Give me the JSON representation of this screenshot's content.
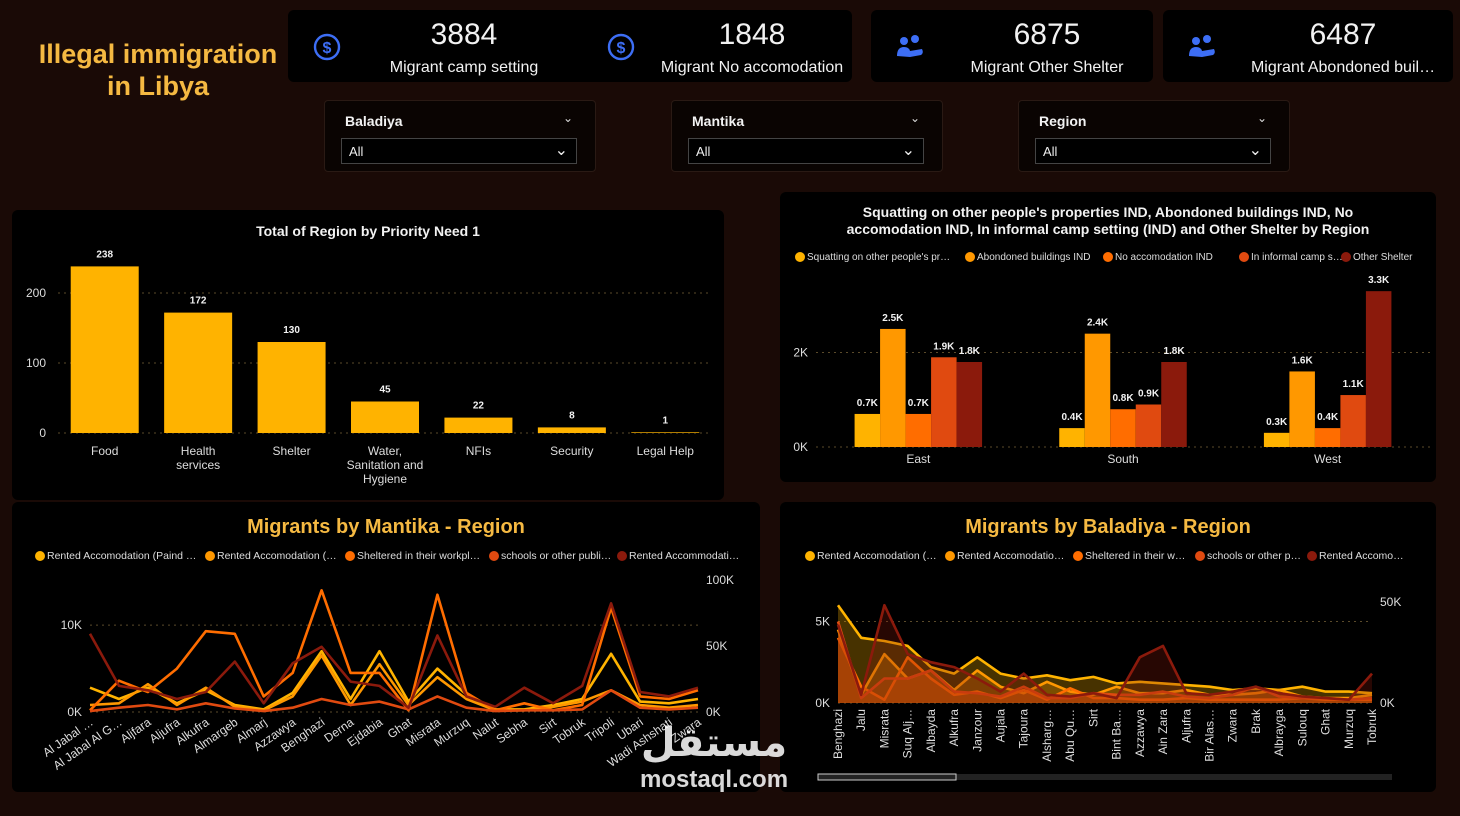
{
  "page": {
    "title_line1": "Illegal immigration",
    "title_line2": "in Libya"
  },
  "kpis": [
    {
      "value": "3884",
      "label": "Migrant camp setting",
      "icon": "dollar-icon"
    },
    {
      "value": "1848",
      "label": "Migrant No accomodation",
      "icon": "dollar-icon"
    },
    {
      "value": "6875",
      "label": "Migrant Other Shelter",
      "icon": "people-icon"
    },
    {
      "value": "6487",
      "label": "Migrant Abondoned buil…",
      "icon": "people-icon"
    }
  ],
  "slicers": [
    {
      "title": "Baladiya",
      "value": "All"
    },
    {
      "title": "Mantika",
      "value": "All"
    },
    {
      "title": "Region",
      "value": "All"
    }
  ],
  "colors": {
    "gold": "#ffb300",
    "light_orange": "#ff9800",
    "orange": "#ff6d00",
    "red_orange": "#e04a10",
    "dark_red": "#8b1a0c",
    "title_gold": "#f5b942"
  },
  "watermark": {
    "arabic": "مستقل",
    "latin": "mostaql.com"
  },
  "chart_data": [
    {
      "type": "bar",
      "title": "Total of Region by Priority Need 1",
      "categories": [
        "Food",
        "Health services",
        "Shelter",
        "Water, Sanitation and Hygiene",
        "NFIs",
        "Security",
        "Legal Help"
      ],
      "category_lines": [
        [
          "Food"
        ],
        [
          "Health",
          "services"
        ],
        [
          "Shelter"
        ],
        [
          "Water,",
          "Sanitation and",
          "Hygiene"
        ],
        [
          "NFIs"
        ],
        [
          "Security"
        ],
        [
          "Legal Help"
        ]
      ],
      "values": [
        238,
        172,
        130,
        45,
        22,
        8,
        1
      ],
      "value_labels": [
        "238",
        "172",
        "130",
        "45",
        "22",
        "8",
        "1"
      ],
      "yticks": [
        0,
        100,
        200
      ],
      "ytick_labels": [
        "0",
        "100",
        "200"
      ],
      "ylim": [
        0,
        250
      ],
      "grid": true
    },
    {
      "type": "bar",
      "title_line1": "Squatting on other people's properties IND, Abondoned buildings IND, No",
      "title_line2": "accomodation IND, In informal camp setting (IND) and Other Shelter by Region",
      "categories": [
        "East",
        "South",
        "West"
      ],
      "series": [
        {
          "name": "Squatting on other people's pr…",
          "values": [
            0.7,
            0.4,
            0.3
          ],
          "labels": [
            "0.7K",
            "0.4K",
            "0.3K"
          ]
        },
        {
          "name": "Abondoned buildings IND",
          "values": [
            2.5,
            2.4,
            1.6
          ],
          "labels": [
            "2.5K",
            "2.4K",
            "1.6K"
          ]
        },
        {
          "name": "No accomodation IND",
          "values": [
            0.7,
            0.8,
            0.4
          ],
          "labels": [
            "0.7K",
            "0.8K",
            "0.4K"
          ]
        },
        {
          "name": "In informal camp s…",
          "values": [
            1.9,
            0.9,
            1.1
          ],
          "labels": [
            "1.9K",
            "0.9K",
            "1.1K"
          ]
        },
        {
          "name": "Other Shelter",
          "values": [
            1.8,
            1.8,
            3.3
          ],
          "labels": [
            "1.8K",
            "1.8K",
            "3.3K"
          ]
        }
      ],
      "yticks": [
        0,
        2
      ],
      "ytick_labels": [
        "0K",
        "2K"
      ],
      "ylim": [
        0,
        3.6
      ],
      "legend": "top",
      "grid": true
    },
    {
      "type": "line",
      "title": "Migrants by Mantika - Region",
      "x": [
        "Al Jabal …",
        "Al Jabal Al G…",
        "Aljfara",
        "Aljufra",
        "Alkufra",
        "Almargeb",
        "Almarj",
        "Azzawya",
        "Benghazi",
        "Derna",
        "Ejdabia",
        "Ghat",
        "Misrata",
        "Murzuq",
        "Nalut",
        "Sebha",
        "Sirt",
        "Tobruk",
        "Tripoli",
        "Ubari",
        "Wadi Ashshati",
        "Zwara"
      ],
      "x_tick_labels": [
        "Al Jabal …",
        "Al Jabal Al G…",
        "Aljfara",
        "Aljufra",
        "Alkufra",
        "Almargeb",
        "Almarj",
        "Azzawya",
        "Benghazi",
        "Derna",
        "Ejdabia",
        "Ghat",
        "Misrata",
        "Murzuq",
        "Nalut",
        "Sebha",
        "Sirt",
        "Tobruk",
        "Tripoli",
        "Ubari",
        "Wadi Ashshati",
        "Zwara"
      ],
      "series": [
        {
          "name": "Rented Accomodation (Paind …",
          "values": [
            2800,
            1500,
            2800,
            1000,
            2500,
            800,
            300,
            2200,
            7000,
            1500,
            7000,
            1200,
            5000,
            2000,
            300,
            300,
            800,
            1500,
            6700,
            1200,
            1000,
            1500
          ]
        },
        {
          "name": "Rented Accomodation (…",
          "values": [
            800,
            1000,
            3200,
            800,
            2800,
            600,
            200,
            1800,
            6500,
            800,
            5500,
            800,
            4000,
            1500,
            200,
            200,
            600,
            1200,
            2500,
            800,
            500,
            800
          ]
        },
        {
          "name": "Sheltered in their workpl…",
          "values": [
            200,
            3600,
            2300,
            5000,
            9300,
            9000,
            1800,
            4500,
            14000,
            4500,
            4500,
            200,
            13500,
            2200,
            200,
            1000,
            200,
            800,
            12000,
            1800,
            1500,
            2500
          ]
        },
        {
          "name": "schools or other publi…",
          "values": [
            100,
            500,
            800,
            300,
            1000,
            400,
            100,
            500,
            1500,
            800,
            1200,
            300,
            1800,
            500,
            100,
            200,
            200,
            300,
            2500,
            500,
            300,
            500
          ]
        },
        {
          "name": "Rented Accommodati…",
          "values": [
            9000,
            3000,
            2500,
            1500,
            2300,
            5800,
            1000,
            5600,
            7500,
            3500,
            3000,
            500,
            8800,
            1800,
            600,
            2800,
            1000,
            3000,
            12500,
            2300,
            1800,
            2800
          ]
        }
      ],
      "yticks": [
        0,
        10000
      ],
      "ytick_labels": [
        "0K",
        "10K"
      ],
      "ylim": [
        0,
        14500
      ],
      "y2ticks": [
        0,
        50000,
        100000
      ],
      "y2tick_labels": [
        "0K",
        "50K",
        "100K"
      ],
      "legend": "top",
      "grid": true
    },
    {
      "type": "area",
      "title": "Migrants by Baladiya - Region",
      "x": [
        "Benghazi",
        "Jalu",
        "Misrata",
        "Suq Alj…",
        "Albayda",
        "Alkufra",
        "Janzour",
        "Aujala",
        "Tajoura",
        "Alsharg…",
        "Abu Qu…",
        "Sirt",
        "Bint Ba…",
        "Azzawya",
        "Ain Zara",
        "Aljufra",
        "Bir Alas…",
        "Zwara",
        "Brak",
        "Albrayga",
        "Sulouq",
        "Ghat",
        "Murzuq",
        "Tobruk"
      ],
      "x_tick_labels": [
        "Benghazi",
        "Jalu",
        "Misrata",
        "Suq Alj…",
        "Albayda",
        "Alkufra",
        "Janzour",
        "Aujala",
        "Tajoura",
        "Alsharg…",
        "Abu Qu…",
        "Sirt",
        "Bint Ba…",
        "Azzawya",
        "Ain Zara",
        "Aljufra",
        "Bir Alas…",
        "Zwara",
        "Brak",
        "Albrayga",
        "Sulouq",
        "Ghat",
        "Murzuq",
        "Tobruk"
      ],
      "series": [
        {
          "name": "Rented Accomodation (…",
          "values": [
            6000,
            4000,
            3800,
            3500,
            2200,
            1800,
            2800,
            1800,
            1500,
            1700,
            1400,
            1600,
            1200,
            1300,
            1200,
            1100,
            1000,
            800,
            900,
            800,
            1000,
            700,
            700,
            600
          ]
        },
        {
          "name": "Rented Accomodatio…",
          "values": [
            4500,
            500,
            3000,
            1500,
            2000,
            800,
            2000,
            1000,
            600,
            1300,
            700,
            500,
            1000,
            600,
            600,
            800,
            500,
            500,
            600,
            800,
            400,
            300,
            300,
            500
          ]
        },
        {
          "name": "Sheltered in their w…",
          "values": [
            4000,
            1000,
            200,
            2800,
            1500,
            500,
            700,
            300,
            800,
            200,
            900,
            300,
            300,
            200,
            200,
            300,
            200,
            200,
            200,
            200,
            300,
            200,
            200,
            200
          ]
        },
        {
          "name": "schools or other p…",
          "values": [
            5000,
            300,
            1500,
            1500,
            2000,
            700,
            600,
            400,
            1000,
            300,
            300,
            600,
            500,
            500,
            700,
            400,
            300,
            500,
            1000,
            400,
            300,
            300,
            200,
            300
          ]
        },
        {
          "name": "Rented Accomo…",
          "values": [
            4800,
            500,
            6000,
            3000,
            2500,
            2200,
            1500,
            700,
            1800,
            500,
            400,
            600,
            300,
            2800,
            3500,
            600,
            500,
            700,
            1000,
            600,
            400,
            300,
            200,
            1800
          ]
        }
      ],
      "yticks": [
        0,
        5000
      ],
      "ytick_labels": [
        "0K",
        "5K"
      ],
      "ylim": [
        0,
        6500
      ],
      "y2ticks": [
        0,
        50000
      ],
      "y2tick_labels": [
        "0K",
        "50K"
      ],
      "legend": "top",
      "grid": true
    }
  ]
}
